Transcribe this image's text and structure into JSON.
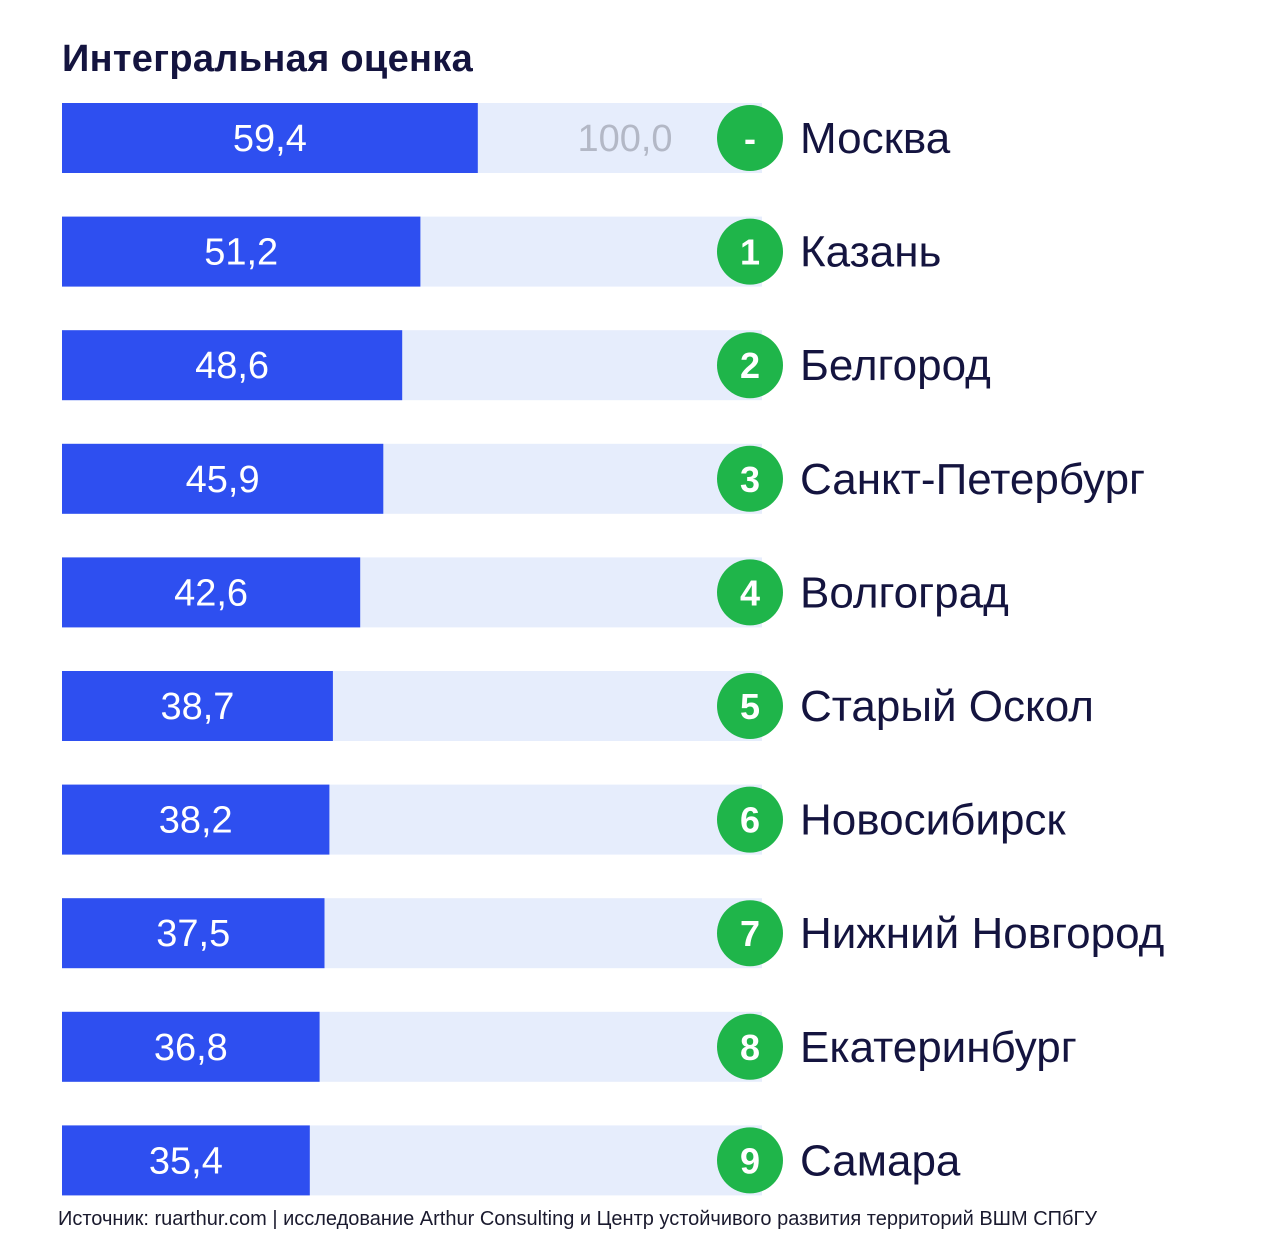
{
  "chart_data": {
    "type": "bar",
    "orientation": "horizontal",
    "title": "Интегральная оценка",
    "max_label": "100,0",
    "xlim": [
      0,
      100
    ],
    "rows": [
      {
        "rank": "-",
        "city": "Москва",
        "value": 59.4,
        "label": "59,4"
      },
      {
        "rank": "1",
        "city": "Казань",
        "value": 51.2,
        "label": "51,2"
      },
      {
        "rank": "2",
        "city": "Белгород",
        "value": 48.6,
        "label": "48,6"
      },
      {
        "rank": "3",
        "city": "Санкт-Петербург",
        "value": 45.9,
        "label": "45,9"
      },
      {
        "rank": "4",
        "city": "Волгоград",
        "value": 42.6,
        "label": "42,6"
      },
      {
        "rank": "5",
        "city": "Старый Оскол",
        "value": 38.7,
        "label": "38,7"
      },
      {
        "rank": "6",
        "city": "Новосибирск",
        "value": 38.2,
        "label": "38,2"
      },
      {
        "rank": "7",
        "city": "Нижний Новгород",
        "value": 37.5,
        "label": "37,5"
      },
      {
        "rank": "8",
        "city": "Екатеринбург",
        "value": 36.8,
        "label": "36,8"
      },
      {
        "rank": "9",
        "city": "Самара",
        "value": 35.4,
        "label": "35,4"
      }
    ],
    "colors": {
      "bar": "#2e4ff0",
      "track": "#e6edfc",
      "badge": "#1fb54a",
      "city_text": "#14143f",
      "max_text": "#b3b8c6"
    }
  },
  "source": "Источник: ruarthur.com | исследование Arthur Consulting и Центр устойчивого развития территорий ВШМ СПбГУ"
}
